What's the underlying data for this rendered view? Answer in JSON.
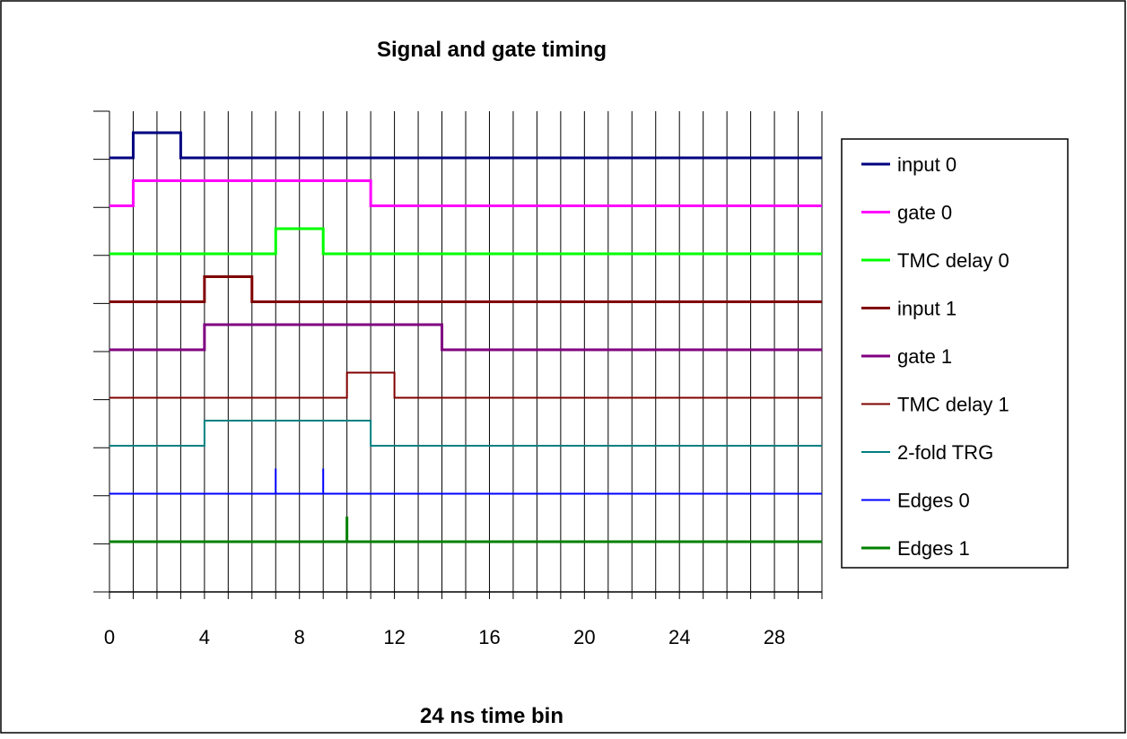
{
  "chart_data": {
    "type": "line",
    "title": "Signal and gate timing",
    "xlabel": "24 ns time bin",
    "ylabel": "",
    "xlim": [
      0,
      30
    ],
    "xticks": [
      "0",
      "4",
      "8",
      "12",
      "16",
      "20",
      "24",
      "28"
    ],
    "xtick_values": [
      0,
      4,
      8,
      12,
      16,
      20,
      24,
      28
    ],
    "grid": "vertical lines at every unit",
    "legend_position": "right",
    "series": [
      {
        "name": "input 0",
        "color": "#000080",
        "stroke": 3,
        "pulses": [
          [
            1,
            3
          ]
        ],
        "kind": "pulse"
      },
      {
        "name": "gate 0",
        "color": "#ff00ff",
        "stroke": 3,
        "pulses": [
          [
            1,
            11
          ]
        ],
        "kind": "pulse"
      },
      {
        "name": "TMC delay 0",
        "color": "#00ff00",
        "stroke": 3,
        "pulses": [
          [
            7,
            9
          ]
        ],
        "kind": "pulse"
      },
      {
        "name": "input 1",
        "color": "#800000",
        "stroke": 3,
        "pulses": [
          [
            4,
            6
          ]
        ],
        "kind": "pulse"
      },
      {
        "name": "gate 1",
        "color": "#800080",
        "stroke": 3,
        "pulses": [
          [
            4,
            14
          ]
        ],
        "kind": "pulse"
      },
      {
        "name": "TMC delay 1",
        "color": "#800000",
        "stroke": 2,
        "pulses": [
          [
            10,
            12
          ]
        ],
        "kind": "pulse"
      },
      {
        "name": "2-fold TRG",
        "color": "#008080",
        "stroke": 2,
        "pulses": [
          [
            4,
            11
          ]
        ],
        "kind": "pulse"
      },
      {
        "name": "Edges 0",
        "color": "#0000ff",
        "stroke": 2,
        "spikes": [
          7,
          9
        ],
        "kind": "spike"
      },
      {
        "name": "Edges 1",
        "color": "#008000",
        "stroke": 3,
        "spikes": [
          10
        ],
        "kind": "spike"
      }
    ]
  }
}
